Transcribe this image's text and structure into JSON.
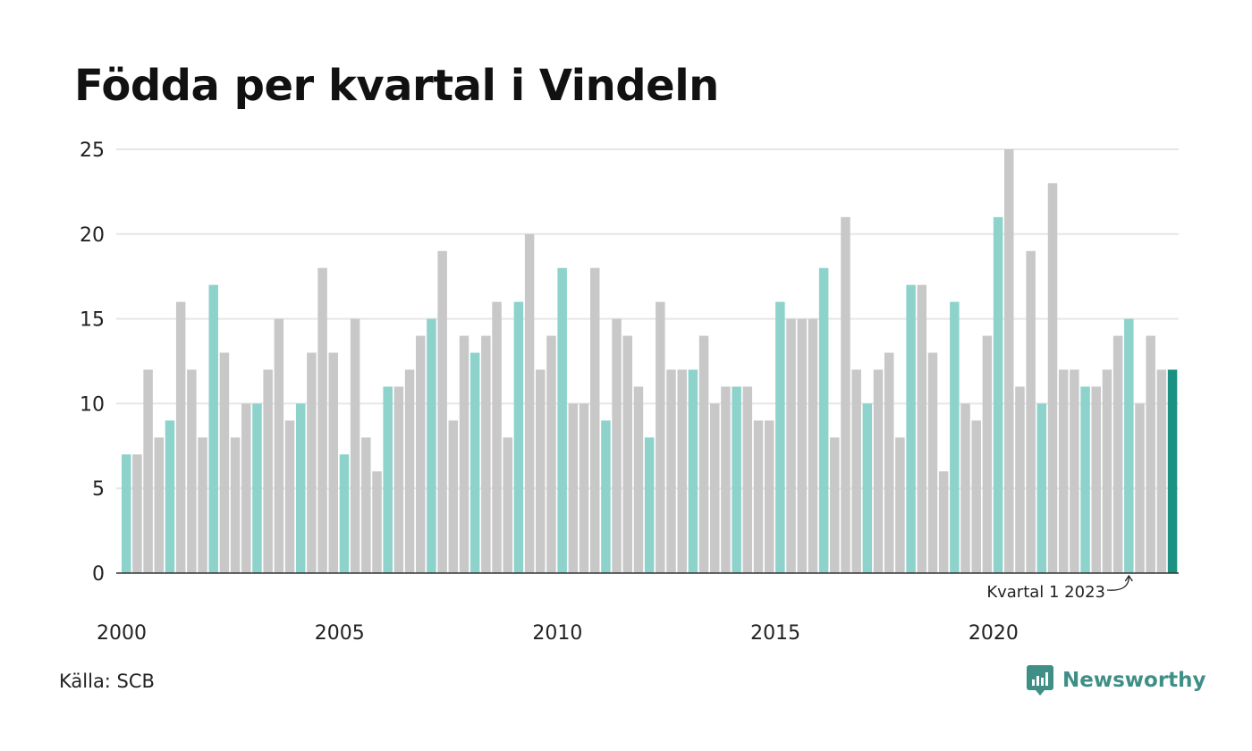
{
  "title": "Födda per kvartal i Vindeln",
  "source": "Källa: SCB",
  "brand": "Newsworthy",
  "colors": {
    "highlight_quarter": "#8dd3cb",
    "other_quarter": "#c8c8c8",
    "latest": "#1a9183",
    "gridline": "#e6e6e6",
    "axis": "#333333"
  },
  "chart_data": {
    "type": "bar",
    "title": "Födda per kvartal i Vindeln",
    "xlabel": "",
    "ylabel": "",
    "ylim": [
      0,
      25
    ],
    "yticks": [
      0,
      5,
      10,
      15,
      20,
      25
    ],
    "xtick_labels": [
      "2000",
      "2005",
      "2010",
      "2015",
      "2020"
    ],
    "grid": true,
    "legend": "none",
    "start": "2000 Q1",
    "highlight_quarter": 1,
    "annotation": "Kvartal 1 2023",
    "values": [
      7,
      7,
      12,
      8,
      9,
      16,
      12,
      8,
      17,
      13,
      8,
      10,
      10,
      12,
      15,
      9,
      10,
      13,
      18,
      13,
      7,
      15,
      8,
      6,
      11,
      11,
      12,
      14,
      15,
      19,
      9,
      14,
      13,
      14,
      16,
      8,
      16,
      20,
      12,
      14,
      18,
      10,
      10,
      18,
      9,
      15,
      14,
      11,
      8,
      16,
      12,
      12,
      12,
      14,
      10,
      11,
      11,
      11,
      9,
      9,
      16,
      15,
      15,
      15,
      18,
      8,
      21,
      12,
      10,
      12,
      13,
      8,
      17,
      17,
      13,
      6,
      16,
      10,
      9,
      14,
      21,
      25,
      11,
      19,
      10,
      23,
      12,
      12,
      11,
      11,
      12,
      14,
      15,
      10,
      14,
      12,
      12
    ]
  }
}
